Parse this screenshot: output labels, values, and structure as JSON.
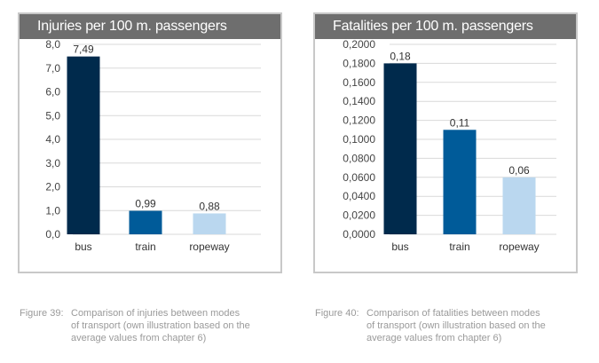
{
  "chart_data": [
    {
      "type": "bar",
      "title": "Injuries per 100 m. passengers",
      "categories": [
        "bus",
        "train",
        "ropeway"
      ],
      "values": [
        7.49,
        0.99,
        0.88
      ],
      "value_labels": [
        "7,49",
        "0,99",
        "0,88"
      ],
      "ylim": [
        0,
        8
      ],
      "yticks": [
        0,
        1,
        2,
        3,
        4,
        5,
        6,
        7,
        8
      ],
      "ytick_labels": [
        "0,0",
        "1,0",
        "2,0",
        "3,0",
        "4,0",
        "5,0",
        "6,0",
        "7,0",
        "8,0"
      ],
      "xlabel": "",
      "ylabel": "",
      "grid": true,
      "colors": [
        "#002a4c",
        "#005b99",
        "#bad7ef"
      ],
      "caption_label": "Figure 39:",
      "caption_lines": [
        "Comparison of injuries between modes",
        "of transport (own illustration based on the",
        "average values from chapter 6)"
      ]
    },
    {
      "type": "bar",
      "title": "Fatalities per 100 m. passengers",
      "categories": [
        "bus",
        "train",
        "ropeway"
      ],
      "values": [
        0.18,
        0.11,
        0.06
      ],
      "value_labels": [
        "0,18",
        "0,11",
        "0,06"
      ],
      "ylim": [
        0,
        0.2
      ],
      "yticks": [
        0,
        0.02,
        0.04,
        0.06,
        0.08,
        0.1,
        0.12,
        0.14,
        0.16,
        0.18,
        0.2
      ],
      "ytick_labels": [
        "0,0000",
        "0,0200",
        "0,0400",
        "0,0600",
        "0,0800",
        "0,1000",
        "0,1200",
        "0,1400",
        "0,1600",
        "0,1800",
        "0,2000"
      ],
      "xlabel": "",
      "ylabel": "",
      "grid": true,
      "colors": [
        "#002a4c",
        "#005b99",
        "#bad7ef"
      ],
      "caption_label": "Figure 40:",
      "caption_lines": [
        "Comparison of fatalities between modes",
        "of transport (own illustration based on the",
        "average values from chapter 6)"
      ]
    }
  ]
}
